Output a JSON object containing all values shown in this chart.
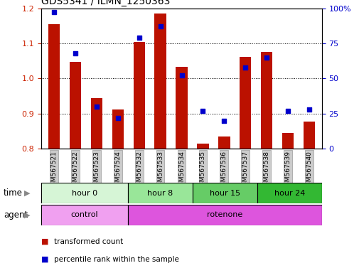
{
  "title": "GDS5341 / ILMN_1250363",
  "samples": [
    "GSM567521",
    "GSM567522",
    "GSM567523",
    "GSM567524",
    "GSM567532",
    "GSM567533",
    "GSM567534",
    "GSM567535",
    "GSM567536",
    "GSM567537",
    "GSM567538",
    "GSM567539",
    "GSM567540"
  ],
  "transformed_count": [
    1.155,
    1.047,
    0.945,
    0.912,
    1.103,
    1.185,
    1.033,
    0.815,
    0.835,
    1.062,
    1.075,
    0.845,
    0.878
  ],
  "percentile_rank": [
    97,
    68,
    30,
    22,
    79,
    87,
    52,
    27,
    20,
    58,
    65,
    27,
    28
  ],
  "ylim_left": [
    0.8,
    1.2
  ],
  "ylim_right": [
    0,
    100
  ],
  "yticks_left": [
    0.8,
    0.9,
    1.0,
    1.1,
    1.2
  ],
  "yticks_right": [
    0,
    25,
    50,
    75,
    100
  ],
  "gridlines": [
    0.9,
    1.0,
    1.1
  ],
  "time_groups": [
    {
      "label": "hour 0",
      "start": 0,
      "end": 4,
      "color": "#d6f5d6"
    },
    {
      "label": "hour 8",
      "start": 4,
      "end": 7,
      "color": "#99e699"
    },
    {
      "label": "hour 15",
      "start": 7,
      "end": 10,
      "color": "#66cc66"
    },
    {
      "label": "hour 24",
      "start": 10,
      "end": 13,
      "color": "#33b833"
    }
  ],
  "agent_groups": [
    {
      "label": "control",
      "start": 0,
      "end": 4,
      "color": "#f0a0f0"
    },
    {
      "label": "rotenone",
      "start": 4,
      "end": 13,
      "color": "#dd55dd"
    }
  ],
  "bar_color": "#bb1100",
  "scatter_color": "#0000cc",
  "tick_color_left": "#cc2200",
  "tick_color_right": "#0000cc",
  "bar_width": 0.55,
  "legend_items": [
    {
      "label": "transformed count",
      "color": "#bb1100"
    },
    {
      "label": "percentile rank within the sample",
      "color": "#0000cc"
    }
  ],
  "xlabel_bg": "#dddddd",
  "time_label": "time",
  "agent_label": "agent"
}
